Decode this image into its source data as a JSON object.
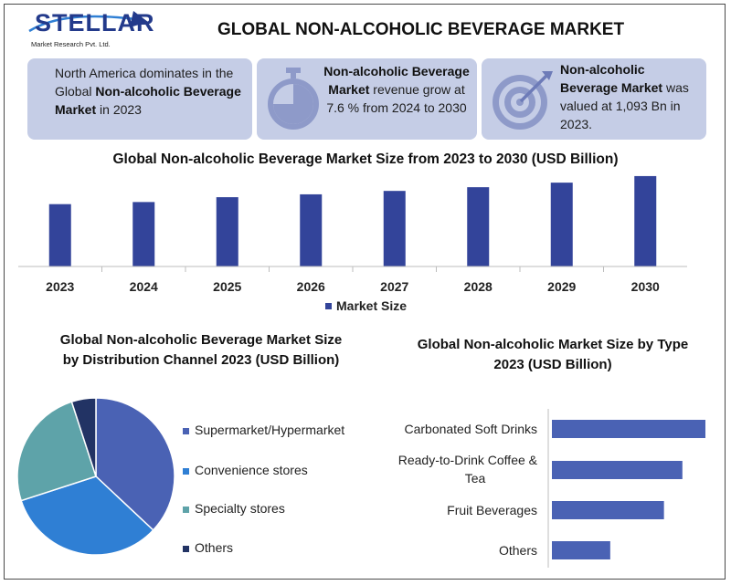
{
  "logo": {
    "name": "STELLAR",
    "tagline": "Market Research Pvt. Ltd."
  },
  "title": "GLOBAL NON-ALCOHOLIC BEVERAGE MARKET",
  "cards": {
    "card1": {
      "line_plain_1": "North America dominates in the Global ",
      "line_bold": "Non-alcoholic Beverage Market",
      "line_plain_2": " in 2023"
    },
    "card2": {
      "bold": "Non-alcoholic Beverage Market",
      "plain": " revenue grow at 7.6 % from 2024 to 2030"
    },
    "card3": {
      "bold": "Non-alcoholic Beverage Market",
      "plain": " was valued at 1,093 Bn in 2023."
    }
  },
  "colors": {
    "bar": "#33449a",
    "card": "#c5cde6",
    "supermarket": "#4a62b4",
    "convenience": "#2f7fd4",
    "specialty": "#5ea3a9",
    "others": "#223364"
  },
  "icons": {
    "card2": "stopwatch-icon",
    "card3": "target-arrow-icon"
  },
  "chart_data": [
    {
      "type": "bar",
      "title": "Global Non-alcoholic Beverage Market Size from 2023 to 2030 (USD Billion)",
      "categories": [
        "2023",
        "2024",
        "2025",
        "2026",
        "2027",
        "2028",
        "2029",
        "2030"
      ],
      "series": [
        {
          "name": "Market Size",
          "values": [
            1093,
            1130,
            1215,
            1265,
            1325,
            1390,
            1470,
            1585
          ]
        }
      ],
      "ylim": [
        0,
        1600
      ],
      "legend": "bottom",
      "grid": false
    },
    {
      "type": "pie",
      "title": "Global Non-alcoholic Beverage Market Size by Distribution Channel 2023 (USD Billion)",
      "categories": [
        "Supermarket/Hypermarket",
        "Convenience stores",
        "Specialty stores",
        "Others"
      ],
      "values": [
        37,
        33,
        25,
        5
      ],
      "legend": "right"
    },
    {
      "type": "bar",
      "orientation": "horizontal",
      "title": "Global Non-alcoholic Market Size by Type 2023 (USD Billion)",
      "categories": [
        "Carbonated Soft Drinks",
        "Ready-to-Drink Coffee & Tea",
        "Fruit Beverages",
        "Others"
      ],
      "values": [
        100,
        85,
        73,
        38
      ],
      "grid": false
    }
  ]
}
